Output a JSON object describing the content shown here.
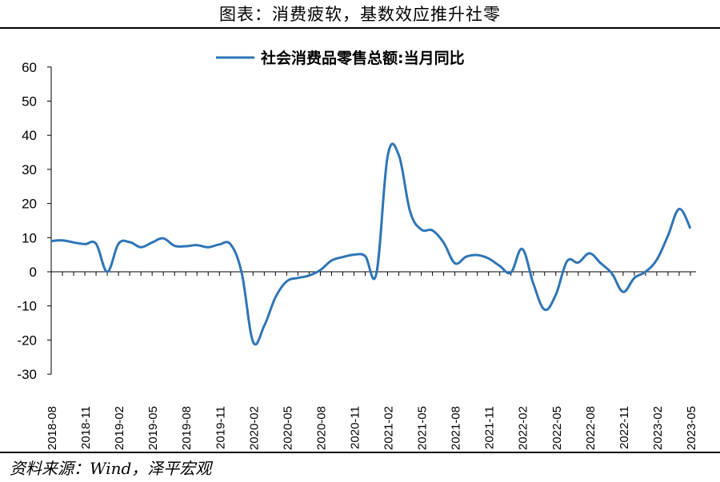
{
  "header": {
    "title": "图表：消费疲软，基数效应推升社零"
  },
  "footer": {
    "source": "资料来源：Wind，泽平宏观"
  },
  "chart_data": {
    "type": "line",
    "title": "",
    "xlabel": "",
    "ylabel": "",
    "ylim": [
      -30,
      60
    ],
    "yticks": [
      -30,
      -20,
      -10,
      0,
      10,
      20,
      30,
      40,
      50,
      60
    ],
    "grid": false,
    "legend_position": "top",
    "x_tick_labels": [
      "2018-08",
      "2018-11",
      "2019-02",
      "2019-05",
      "2019-08",
      "2019-11",
      "2020-02",
      "2020-05",
      "2020-08",
      "2020-11",
      "2021-02",
      "2021-05",
      "2021-08",
      "2021-11",
      "2022-02",
      "2022-05",
      "2022-08",
      "2022-11",
      "2023-02",
      "2023-05"
    ],
    "x": [
      "2018-08",
      "2018-09",
      "2018-10",
      "2018-11",
      "2018-12",
      "2019-01",
      "2019-02",
      "2019-03",
      "2019-04",
      "2019-05",
      "2019-06",
      "2019-07",
      "2019-08",
      "2019-09",
      "2019-10",
      "2019-11",
      "2019-12",
      "2020-01",
      "2020-02",
      "2020-03",
      "2020-04",
      "2020-05",
      "2020-06",
      "2020-07",
      "2020-08",
      "2020-09",
      "2020-10",
      "2020-11",
      "2020-12",
      "2021-01",
      "2021-02",
      "2021-03",
      "2021-04",
      "2021-05",
      "2021-06",
      "2021-07",
      "2021-08",
      "2021-09",
      "2021-10",
      "2021-11",
      "2021-12",
      "2022-01",
      "2022-02",
      "2022-03",
      "2022-04",
      "2022-05",
      "2022-06",
      "2022-07",
      "2022-08",
      "2022-09",
      "2022-10",
      "2022-11",
      "2022-12",
      "2023-01",
      "2023-02",
      "2023-03",
      "2023-04",
      "2023-05"
    ],
    "series": [
      {
        "name": "社会消费品零售总额:当月同比",
        "color": "#2e75b6",
        "values": [
          9.0,
          9.2,
          8.6,
          8.1,
          8.2,
          0.0,
          8.2,
          8.7,
          7.2,
          8.6,
          9.8,
          7.6,
          7.5,
          7.8,
          7.2,
          8.0,
          8.0,
          -0.5,
          -20.5,
          -15.8,
          -7.5,
          -2.8,
          -1.8,
          -1.1,
          0.5,
          3.3,
          4.3,
          5.0,
          4.6,
          -0.5,
          33.8,
          34.2,
          17.7,
          12.4,
          12.1,
          8.5,
          2.5,
          4.4,
          4.9,
          3.9,
          1.7,
          -0.2,
          6.7,
          -3.5,
          -11.1,
          -6.7,
          3.1,
          2.7,
          5.4,
          2.5,
          -0.5,
          -5.9,
          -1.8,
          0.0,
          3.5,
          10.6,
          18.4,
          12.7
        ]
      }
    ]
  }
}
